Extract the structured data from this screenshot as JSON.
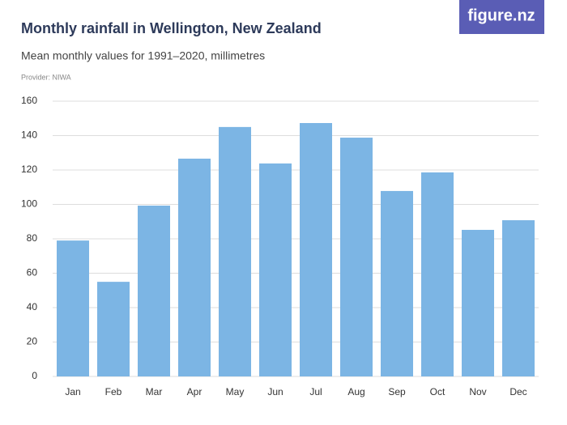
{
  "logo": "figure.nz",
  "chart_data": {
    "type": "bar",
    "title": "Monthly rainfall in Wellington, New Zealand",
    "subtitle": "Mean monthly values for 1991–2020, millimetres",
    "provider": "Provider: NIWA",
    "categories": [
      "Jan",
      "Feb",
      "Mar",
      "Apr",
      "May",
      "Jun",
      "Jul",
      "Aug",
      "Sep",
      "Oct",
      "Nov",
      "Dec"
    ],
    "values": [
      79,
      55,
      99.3,
      126.6,
      145,
      123.8,
      147.3,
      138.8,
      107.8,
      118.6,
      85.2,
      90.8
    ],
    "color": "#7cb5e4",
    "ylim": [
      0,
      160
    ],
    "yticks": [
      0,
      20,
      40,
      60,
      80,
      100,
      120,
      140,
      160
    ],
    "grid": true
  }
}
